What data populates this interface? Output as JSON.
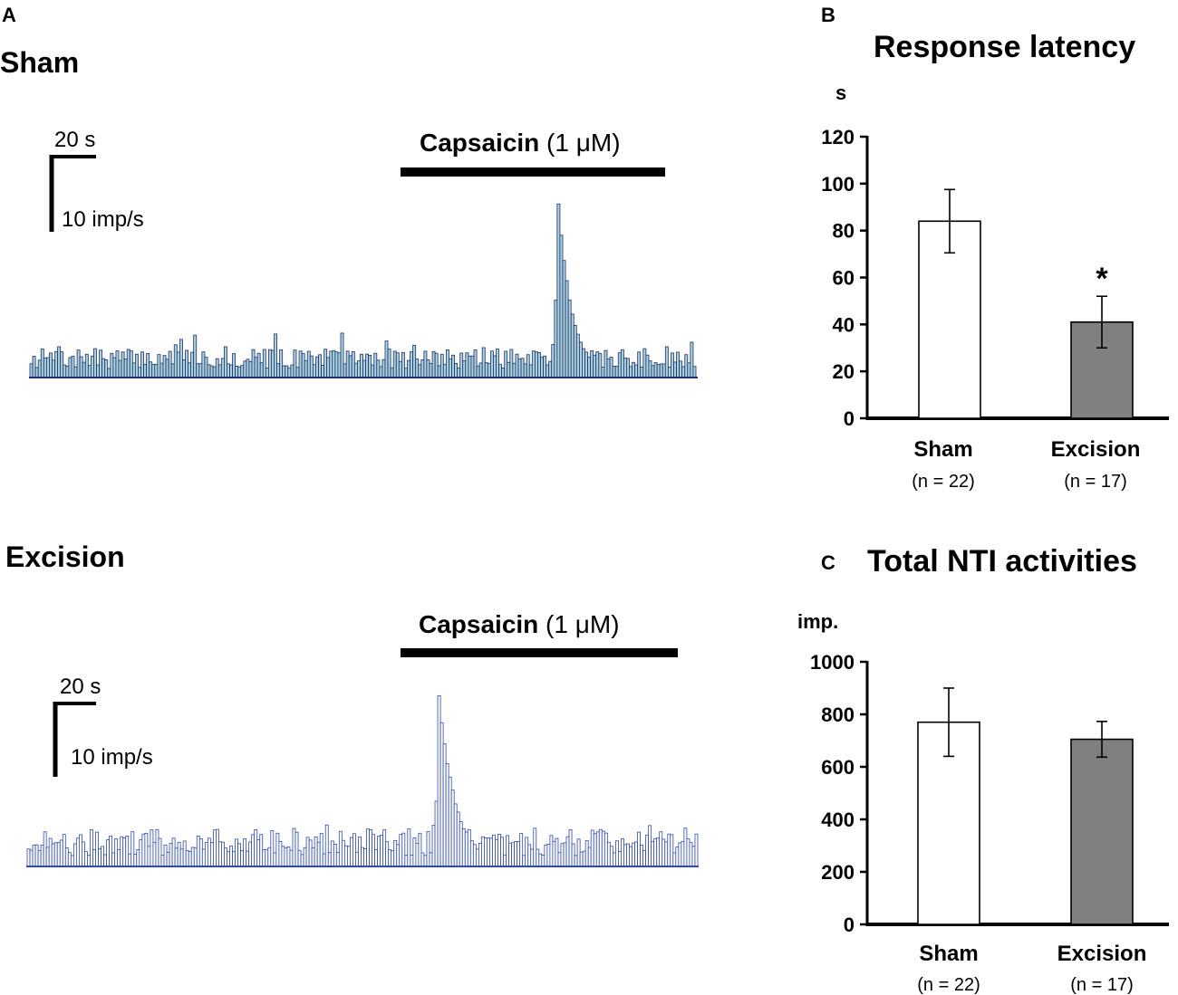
{
  "panel_a": {
    "label": "A",
    "sham": {
      "title": "Sham",
      "scale_time": "20 s",
      "scale_rate": "10 imp/s",
      "stimulus_bold": "Capsaicin",
      "stimulus_conc": " (1 μM)",
      "trace_color": "#a9d2dc",
      "trace_outline": "#1f2f6b"
    },
    "excision": {
      "title": "Excision",
      "scale_time": "20 s",
      "scale_rate": "10 imp/s",
      "stimulus_bold": "Capsaicin",
      "stimulus_conc": " (1 μM)",
      "trace_color": "#ffffff",
      "trace_outline": "#2f4aa8"
    }
  },
  "chart_data": [
    {
      "panel": "B",
      "type": "bar",
      "title": "Response latency",
      "ylabel": "s",
      "ylim": [
        0,
        120
      ],
      "yticks": [
        "0",
        "20",
        "40",
        "60",
        "80",
        "100",
        "120"
      ],
      "categories": [
        "Sham",
        "Excision"
      ],
      "n_labels": [
        "(n = 22)",
        "(n = 17)"
      ],
      "values": [
        84,
        41
      ],
      "errors": [
        13.5,
        11
      ],
      "colors": [
        "#ffffff",
        "#808080"
      ],
      "significance": [
        "",
        "*"
      ]
    },
    {
      "panel": "C",
      "type": "bar",
      "title": "Total NTI activities",
      "ylabel": "imp.",
      "ylim": [
        0,
        1000
      ],
      "yticks": [
        "0",
        "200",
        "400",
        "600",
        "800",
        "1000"
      ],
      "categories": [
        "Sham",
        "Excision"
      ],
      "n_labels": [
        "(n = 22)",
        "(n = 17)"
      ],
      "values": [
        770,
        705
      ],
      "errors": [
        130,
        68
      ],
      "colors": [
        "#ffffff",
        "#808080"
      ],
      "significance": [
        "",
        ""
      ]
    }
  ]
}
